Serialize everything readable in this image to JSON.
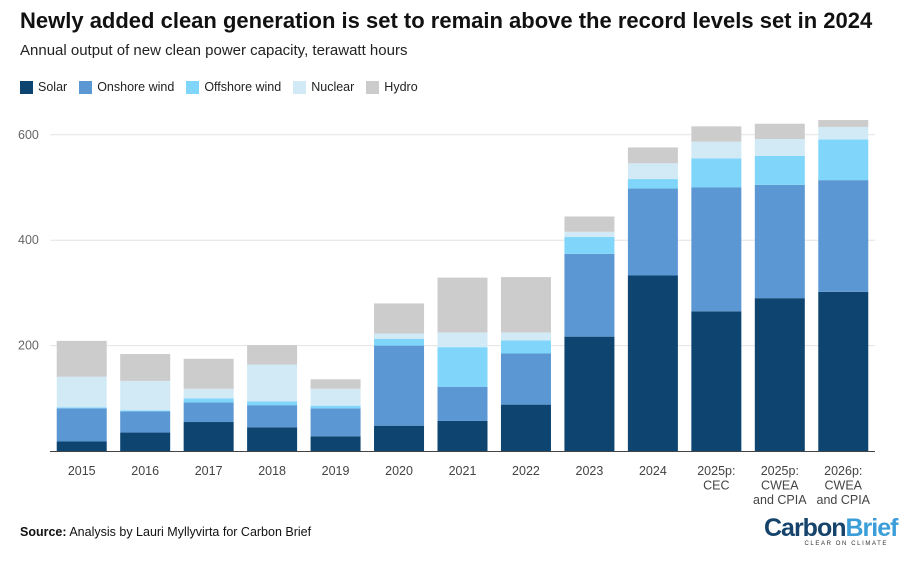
{
  "chart_data": {
    "type": "bar",
    "stacked": true,
    "title": "Newly added clean generation is set to remain above the record levels set in 2024",
    "subtitle": "Annual output of new clean power capacity, terawatt hours",
    "categories": [
      [
        "2015"
      ],
      [
        "2016"
      ],
      [
        "2017"
      ],
      [
        "2018"
      ],
      [
        "2019"
      ],
      [
        "2020"
      ],
      [
        "2021"
      ],
      [
        "2022"
      ],
      [
        "2023"
      ],
      [
        "2024"
      ],
      [
        "2025p:",
        "CEC"
      ],
      [
        "2025p:",
        "CWEA",
        "and CPIA"
      ],
      [
        "2026p:",
        "CWEA",
        "and CPIA"
      ]
    ],
    "series": [
      {
        "name": "Solar",
        "color": "#0e4470",
        "values": [
          18,
          35,
          55,
          45,
          28,
          48,
          57,
          88,
          217,
          333,
          265,
          290,
          302
        ]
      },
      {
        "name": "Onshore wind",
        "color": "#5b97d3",
        "values": [
          63,
          40,
          37,
          42,
          53,
          152,
          65,
          97,
          157,
          165,
          235,
          215,
          212
        ]
      },
      {
        "name": "Offshore wind",
        "color": "#7fd6fa",
        "values": [
          2,
          2,
          8,
          7,
          5,
          13,
          75,
          25,
          32,
          18,
          55,
          55,
          77
        ]
      },
      {
        "name": "Nuclear",
        "color": "#d1eaf5",
        "values": [
          58,
          56,
          18,
          70,
          32,
          10,
          28,
          15,
          10,
          30,
          32,
          32,
          24
        ]
      },
      {
        "name": "Hydro",
        "color": "#cccccc",
        "values": [
          68,
          51,
          57,
          37,
          18,
          57,
          104,
          105,
          29,
          30,
          29,
          29,
          13
        ]
      }
    ],
    "ylim": [
      0,
      640
    ],
    "yticks": [
      200,
      400,
      600
    ],
    "grid": true,
    "legend": "top-left"
  },
  "source": {
    "label": "Source:",
    "text": "Analysis by Lauri Myllyvirta for Carbon Brief"
  },
  "logo": {
    "carbon": "Carbon",
    "brief": "Brief",
    "tagline": "CLEAR ON CLIMATE"
  }
}
